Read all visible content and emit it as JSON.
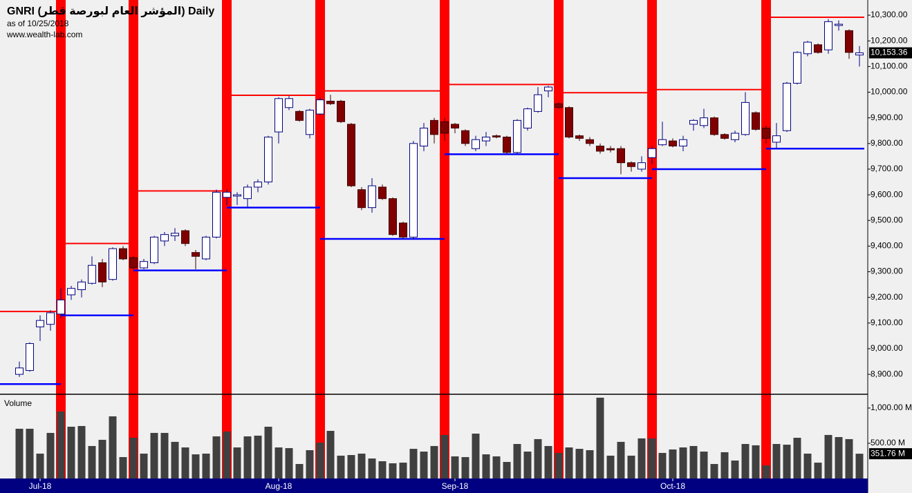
{
  "chart_data": {
    "type": "candlestick",
    "title": "GNRI (المؤشر العام لبورصة قطر) Daily",
    "subtitle": "as of 10/25/2018",
    "source": "www.wealth-lab.com",
    "volume_title": "Volume",
    "categories": [
      null,
      null,
      "Jul-18",
      null,
      null,
      null,
      null,
      null,
      null,
      null,
      null,
      null,
      null,
      null,
      null,
      null,
      null,
      null,
      null,
      null,
      null,
      null,
      null,
      null,
      null,
      "Aug-18",
      null,
      null,
      null,
      null,
      null,
      null,
      null,
      null,
      null,
      null,
      null,
      null,
      null,
      null,
      null,
      null,
      "Sep-18",
      null,
      null,
      null,
      null,
      null,
      null,
      null,
      null,
      null,
      null,
      null,
      null,
      null,
      null,
      null,
      null,
      null,
      null,
      null,
      null,
      "Oct-18",
      null,
      null,
      null,
      null,
      null,
      null,
      null,
      null,
      null,
      null,
      null,
      null,
      null,
      null,
      null,
      null,
      null,
      null
    ],
    "open": [
      8900,
      8915,
      9085,
      9095,
      9135,
      9210,
      9230,
      9255,
      9335,
      9270,
      9390,
      9355,
      9315,
      9335,
      9420,
      9440,
      9460,
      9375,
      9350,
      9435,
      9590,
      9595,
      9585,
      9630,
      9650,
      9845,
      9940,
      9925,
      9835,
      9915,
      9965,
      9965,
      9875,
      9620,
      9550,
      9630,
      9585,
      9490,
      9435,
      9790,
      9890,
      9885,
      9875,
      9850,
      9780,
      9810,
      9830,
      9825,
      9765,
      9860,
      9925,
      10005,
      9955,
      9940,
      9830,
      9815,
      9790,
      9780,
      9780,
      9725,
      9700,
      9745,
      9795,
      9810,
      9790,
      9875,
      9870,
      9900,
      9835,
      9815,
      9835,
      9920,
      9860,
      9805,
      9850,
      10035,
      10150,
      10185,
      10165,
      10260,
      10240,
      10145
    ],
    "high": [
      8950,
      9025,
      9130,
      9150,
      9235,
      9245,
      9270,
      9360,
      9350,
      9395,
      9400,
      9360,
      9350,
      9440,
      9455,
      9470,
      9465,
      9385,
      9440,
      9620,
      9620,
      9610,
      9640,
      9660,
      9830,
      9980,
      9985,
      9930,
      9935,
      9980,
      9990,
      9970,
      9880,
      9630,
      9665,
      9640,
      9590,
      9495,
      9810,
      9880,
      9900,
      9900,
      9880,
      9855,
      9830,
      9845,
      9835,
      9830,
      9895,
      9940,
      10020,
      10025,
      9960,
      9945,
      9835,
      9825,
      9800,
      9790,
      9790,
      9730,
      9750,
      9790,
      9885,
      9820,
      9830,
      9895,
      9935,
      9905,
      9840,
      9850,
      10000,
      9925,
      9870,
      9880,
      10040,
      10160,
      10200,
      10190,
      10285,
      10280,
      10245,
      10180
    ],
    "low": [
      8890,
      8910,
      9030,
      9070,
      9120,
      9190,
      9200,
      9250,
      9240,
      9265,
      9345,
      9310,
      9310,
      9330,
      9400,
      9420,
      9400,
      9310,
      9345,
      9430,
      9560,
      9560,
      9550,
      9610,
      9640,
      9800,
      9930,
      9885,
      9820,
      9910,
      9950,
      9880,
      9630,
      9540,
      9530,
      9580,
      9440,
      9430,
      9425,
      9770,
      9800,
      9810,
      9840,
      9790,
      9770,
      9790,
      9820,
      9760,
      9760,
      9850,
      9920,
      9980,
      9935,
      9820,
      9810,
      9790,
      9760,
      9765,
      9680,
      9690,
      9690,
      9720,
      9790,
      9785,
      9770,
      9850,
      9860,
      9830,
      9815,
      9805,
      9830,
      9850,
      9800,
      9780,
      9845,
      10030,
      10140,
      10150,
      10150,
      10240,
      10130,
      10100
    ],
    "close": [
      8925,
      9020,
      9110,
      9140,
      9190,
      9235,
      9260,
      9325,
      9260,
      9390,
      9350,
      9315,
      9340,
      9435,
      9445,
      9450,
      9410,
      9360,
      9435,
      9610,
      9610,
      9600,
      9630,
      9650,
      9825,
      9975,
      9975,
      9890,
      9930,
      9970,
      9955,
      9885,
      9635,
      9550,
      9635,
      9585,
      9445,
      9435,
      9800,
      9860,
      9835,
      9840,
      9860,
      9800,
      9815,
      9825,
      9825,
      9765,
      9890,
      9935,
      9990,
      10020,
      9940,
      9825,
      9820,
      9800,
      9770,
      9775,
      9725,
      9710,
      9725,
      9780,
      9815,
      9790,
      9815,
      9890,
      9900,
      9835,
      9820,
      9840,
      9960,
      9855,
      9820,
      9830,
      10035,
      10155,
      10195,
      10155,
      10275,
      10265,
      10155,
      10153.36
    ],
    "volume": [
      706,
      706,
      353,
      647,
      951,
      735,
      745,
      461,
      549,
      882,
      304,
      578,
      353,
      647,
      647,
      520,
      441,
      343,
      353,
      598,
      667,
      441,
      598,
      608,
      735,
      441,
      431,
      206,
      402,
      510,
      676,
      324,
      333,
      353,
      284,
      245,
      216,
      225,
      421,
      382,
      461,
      618,
      314,
      304,
      637,
      343,
      314,
      235,
      490,
      382,
      559,
      461,
      363,
      441,
      421,
      402,
      1147,
      324,
      520,
      324,
      569,
      569,
      363,
      412,
      441,
      461,
      382,
      206,
      373,
      255,
      490,
      471,
      186,
      490,
      480,
      578,
      353,
      225,
      618,
      588,
      559,
      351.76
    ],
    "last_close_label": "10,153.36",
    "last_volume_label": "351.76 M",
    "period_starts": [
      4,
      11,
      20,
      29,
      41,
      52,
      61,
      72
    ],
    "period_highs": [
      9145,
      9410,
      9615,
      9988,
      10005,
      10030,
      9998,
      10010,
      10292
    ],
    "period_lows": [
      8862,
      9130,
      9305,
      9550,
      9428,
      9758,
      9665,
      9700,
      9780
    ],
    "ylim": [
      8825,
      10354
    ],
    "yticks": [
      {
        "value": 8900,
        "label": "8,900.00"
      },
      {
        "value": 9000,
        "label": "9,000.00"
      },
      {
        "value": 9100,
        "label": "9,100.00"
      },
      {
        "value": 9200,
        "label": "9,200.00"
      },
      {
        "value": 9300,
        "label": "9,300.00"
      },
      {
        "value": 9400,
        "label": "9,400.00"
      },
      {
        "value": 9500,
        "label": "9,500.00"
      },
      {
        "value": 9600,
        "label": "9,600.00"
      },
      {
        "value": 9700,
        "label": "9,700.00"
      },
      {
        "value": 9800,
        "label": "9,800.00"
      },
      {
        "value": 9900,
        "label": "9,900.00"
      },
      {
        "value": 10000,
        "label": "10,000.00"
      },
      {
        "value": 10100,
        "label": "10,100.00"
      },
      {
        "value": 10200,
        "label": "10,200.00"
      },
      {
        "value": 10300,
        "label": "10,300.00"
      }
    ],
    "y2lim": [
      0,
      1176
    ],
    "y2ticks": [
      {
        "value": 500,
        "label": "500.00 M"
      },
      {
        "value": 1000,
        "label": "1,000.00 M"
      }
    ],
    "colors": {
      "up_fill": "#ffffff",
      "up_line": "#000080",
      "down_fill": "#800000",
      "down_line": "#400000",
      "volume": "#404040",
      "band": "#ff0000",
      "high_line": "#ff0000",
      "low_line": "#0000ff",
      "axis_bar": "#000080"
    }
  }
}
